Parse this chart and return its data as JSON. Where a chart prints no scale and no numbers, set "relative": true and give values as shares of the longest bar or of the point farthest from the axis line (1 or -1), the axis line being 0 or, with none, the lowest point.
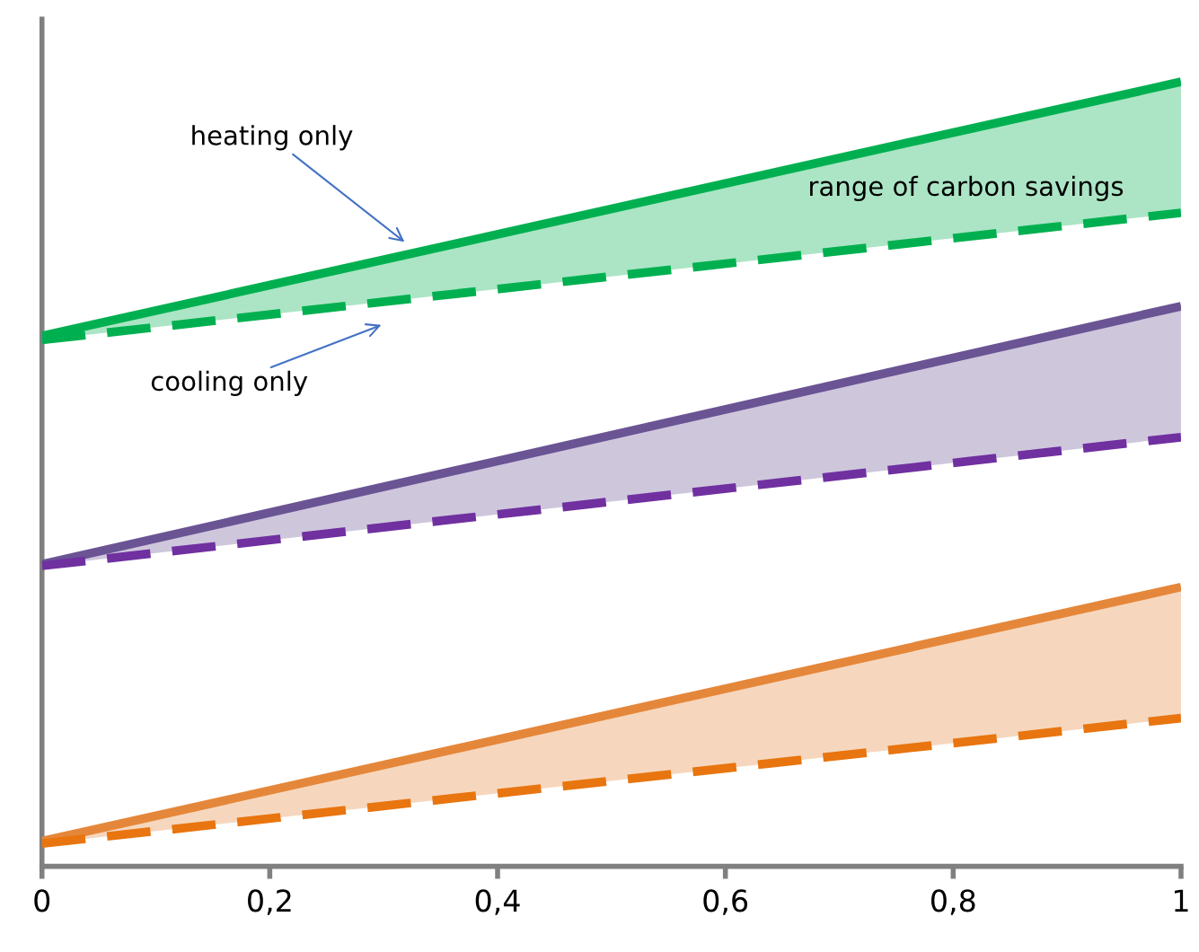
{
  "chart_data": {
    "type": "line",
    "relative": true,
    "grid": false,
    "xlim": [
      0,
      1
    ],
    "xticks": [
      0,
      {
        "value": 0.2,
        "label": "0,2"
      },
      {
        "value": 0.4,
        "label": "0,4"
      },
      {
        "value": 0.6,
        "label": "0,6"
      },
      {
        "value": 0.8,
        "label": "0,8"
      },
      1
    ],
    "x": [
      0,
      1
    ],
    "series": [
      {
        "color": "#00b050",
        "line_style": "solid",
        "values": [
          0.676,
          1.0
        ],
        "lower": [
          0.671,
          0.833
        ],
        "upper": [
          0.676,
          1.0
        ]
      },
      {
        "color": "#00b050",
        "line_style": "dashed",
        "values": [
          0.671,
          0.833
        ]
      },
      {
        "color": "#6a5494",
        "line_style": "solid",
        "values": [
          0.385,
          0.714
        ],
        "lower": [
          0.383,
          0.547
        ],
        "upper": [
          0.385,
          0.714
        ]
      },
      {
        "color": "#7030a0",
        "line_style": "dashed",
        "values": [
          0.383,
          0.547
        ]
      },
      {
        "color": "#e5873a",
        "line_style": "solid",
        "values": [
          0.032,
          0.356
        ],
        "lower": [
          0.029,
          0.189
        ],
        "upper": [
          0.032,
          0.356
        ]
      },
      {
        "color": "#e8750f",
        "line_style": "dashed",
        "values": [
          0.029,
          0.189
        ]
      }
    ],
    "annotations": [
      "heating only",
      "cooling only",
      "range of carbon savings"
    ]
  }
}
